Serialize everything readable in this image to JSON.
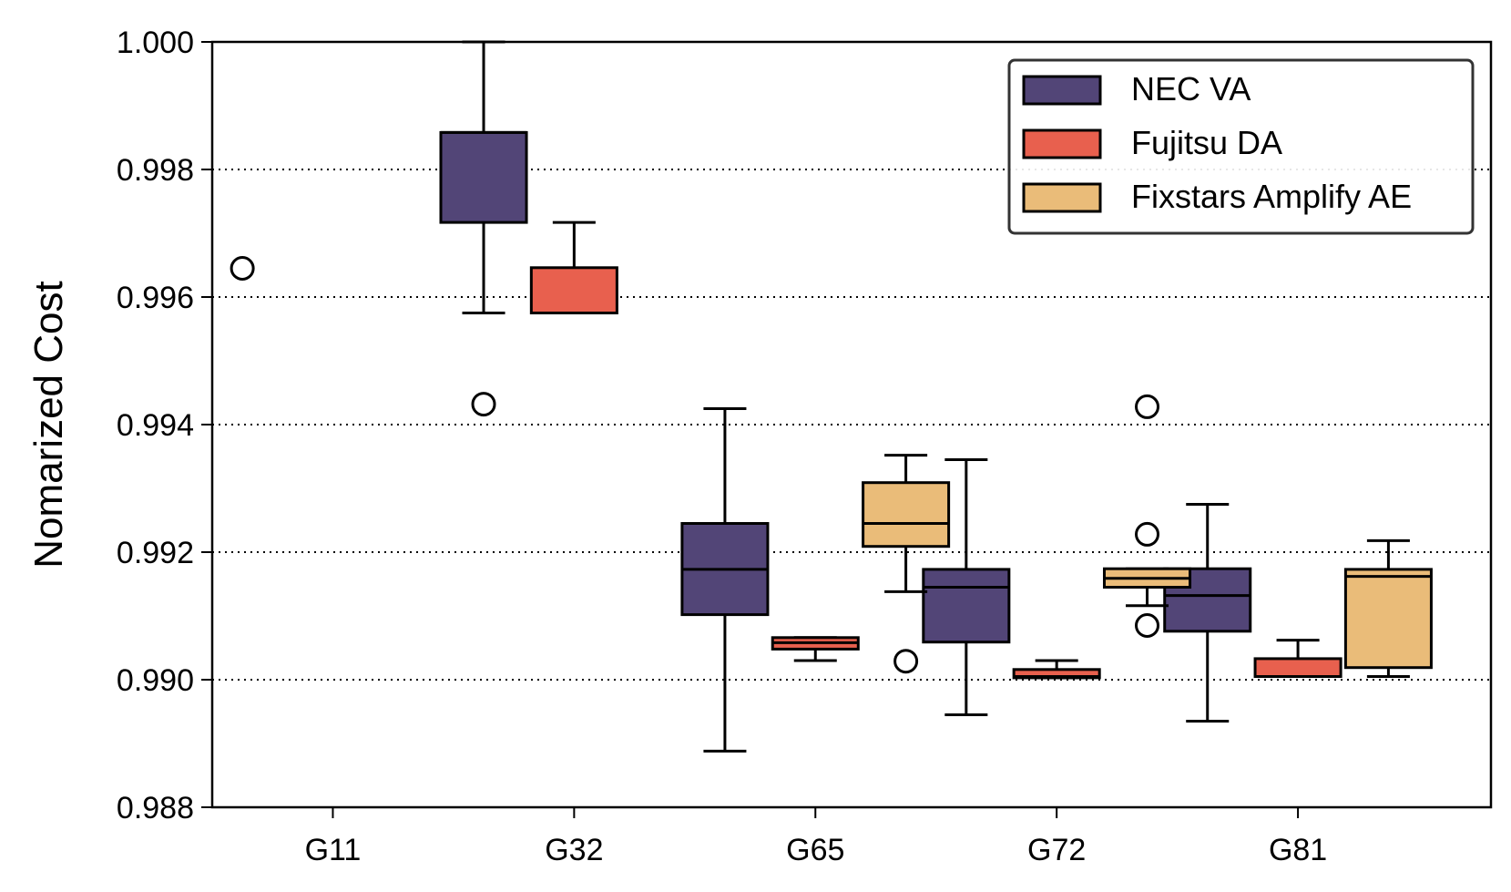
{
  "chart_data": {
    "type": "box",
    "ylabel": "Nomarized Cost",
    "xlabel": "",
    "ylim": [
      0.988,
      1.0
    ],
    "yticks": [
      "0.988",
      "0.990",
      "0.992",
      "0.994",
      "0.996",
      "0.998",
      "1.000"
    ],
    "categories": [
      "G11",
      "G32",
      "G65",
      "G72",
      "G81"
    ],
    "grid": "horizontal dotted",
    "legend_position": "top-right",
    "series": [
      {
        "name": "NEC VA",
        "color": "#524577",
        "boxes": [
          {
            "category": "G11",
            "whisker_low": null,
            "q1": null,
            "median": null,
            "q3": null,
            "whisker_high": null,
            "outliers": [
              0.99645
            ]
          },
          {
            "category": "G32",
            "whisker_low": 0.99575,
            "q1": 0.99717,
            "median": 0.99858,
            "q3": 0.99858,
            "whisker_high": 1.0,
            "outliers": [
              0.99432
            ]
          },
          {
            "category": "G65",
            "whisker_low": 0.98888,
            "q1": 0.99102,
            "median": 0.99173,
            "q3": 0.99245,
            "whisker_high": 0.99425,
            "outliers": []
          },
          {
            "category": "G72",
            "whisker_low": 0.98945,
            "q1": 0.99059,
            "median": 0.99145,
            "q3": 0.99173,
            "whisker_high": 0.99345,
            "outliers": []
          },
          {
            "category": "G81",
            "whisker_low": 0.98935,
            "q1": 0.99076,
            "median": 0.99132,
            "q3": 0.99174,
            "whisker_high": 0.99275,
            "outliers": []
          }
        ]
      },
      {
        "name": "Fujitsu DA",
        "color": "#E8604E",
        "boxes": [
          {
            "category": "G11",
            "whisker_low": null,
            "q1": null,
            "median": null,
            "q3": null,
            "whisker_high": null,
            "outliers": []
          },
          {
            "category": "G32",
            "whisker_low": 0.99575,
            "q1": 0.99575,
            "median": 0.99575,
            "q3": 0.99646,
            "whisker_high": 0.99717,
            "outliers": []
          },
          {
            "category": "G65",
            "whisker_low": 0.9903,
            "q1": 0.99048,
            "median": 0.99058,
            "q3": 0.99066,
            "whisker_high": 0.99066,
            "outliers": []
          },
          {
            "category": "G72",
            "whisker_low": 0.99003,
            "q1": 0.99003,
            "median": 0.99005,
            "q3": 0.99016,
            "whisker_high": 0.9903,
            "outliers": []
          },
          {
            "category": "G81",
            "whisker_low": 0.99005,
            "q1": 0.99005,
            "median": 0.99005,
            "q3": 0.99033,
            "whisker_high": 0.99062,
            "outliers": []
          }
        ]
      },
      {
        "name": "Fixstars Amplify AE",
        "color": "#EABC79",
        "boxes": [
          {
            "category": "G11",
            "whisker_low": null,
            "q1": null,
            "median": null,
            "q3": null,
            "whisker_high": null,
            "outliers": []
          },
          {
            "category": "G32",
            "whisker_low": null,
            "q1": null,
            "median": null,
            "q3": null,
            "whisker_high": null,
            "outliers": []
          },
          {
            "category": "G65",
            "whisker_low": 0.99138,
            "q1": 0.99209,
            "median": 0.99245,
            "q3": 0.99309,
            "whisker_high": 0.99352,
            "outliers": [
              0.99029
            ]
          },
          {
            "category": "G72",
            "whisker_low": 0.99116,
            "q1": 0.99145,
            "median": 0.99159,
            "q3": 0.99174,
            "whisker_high": 0.99174,
            "outliers": [
              0.99428,
              0.99228,
              0.99085
            ]
          },
          {
            "category": "G81",
            "whisker_low": 0.99005,
            "q1": 0.99019,
            "median": 0.99162,
            "q3": 0.99173,
            "whisker_high": 0.99218,
            "outliers": []
          }
        ]
      }
    ]
  }
}
